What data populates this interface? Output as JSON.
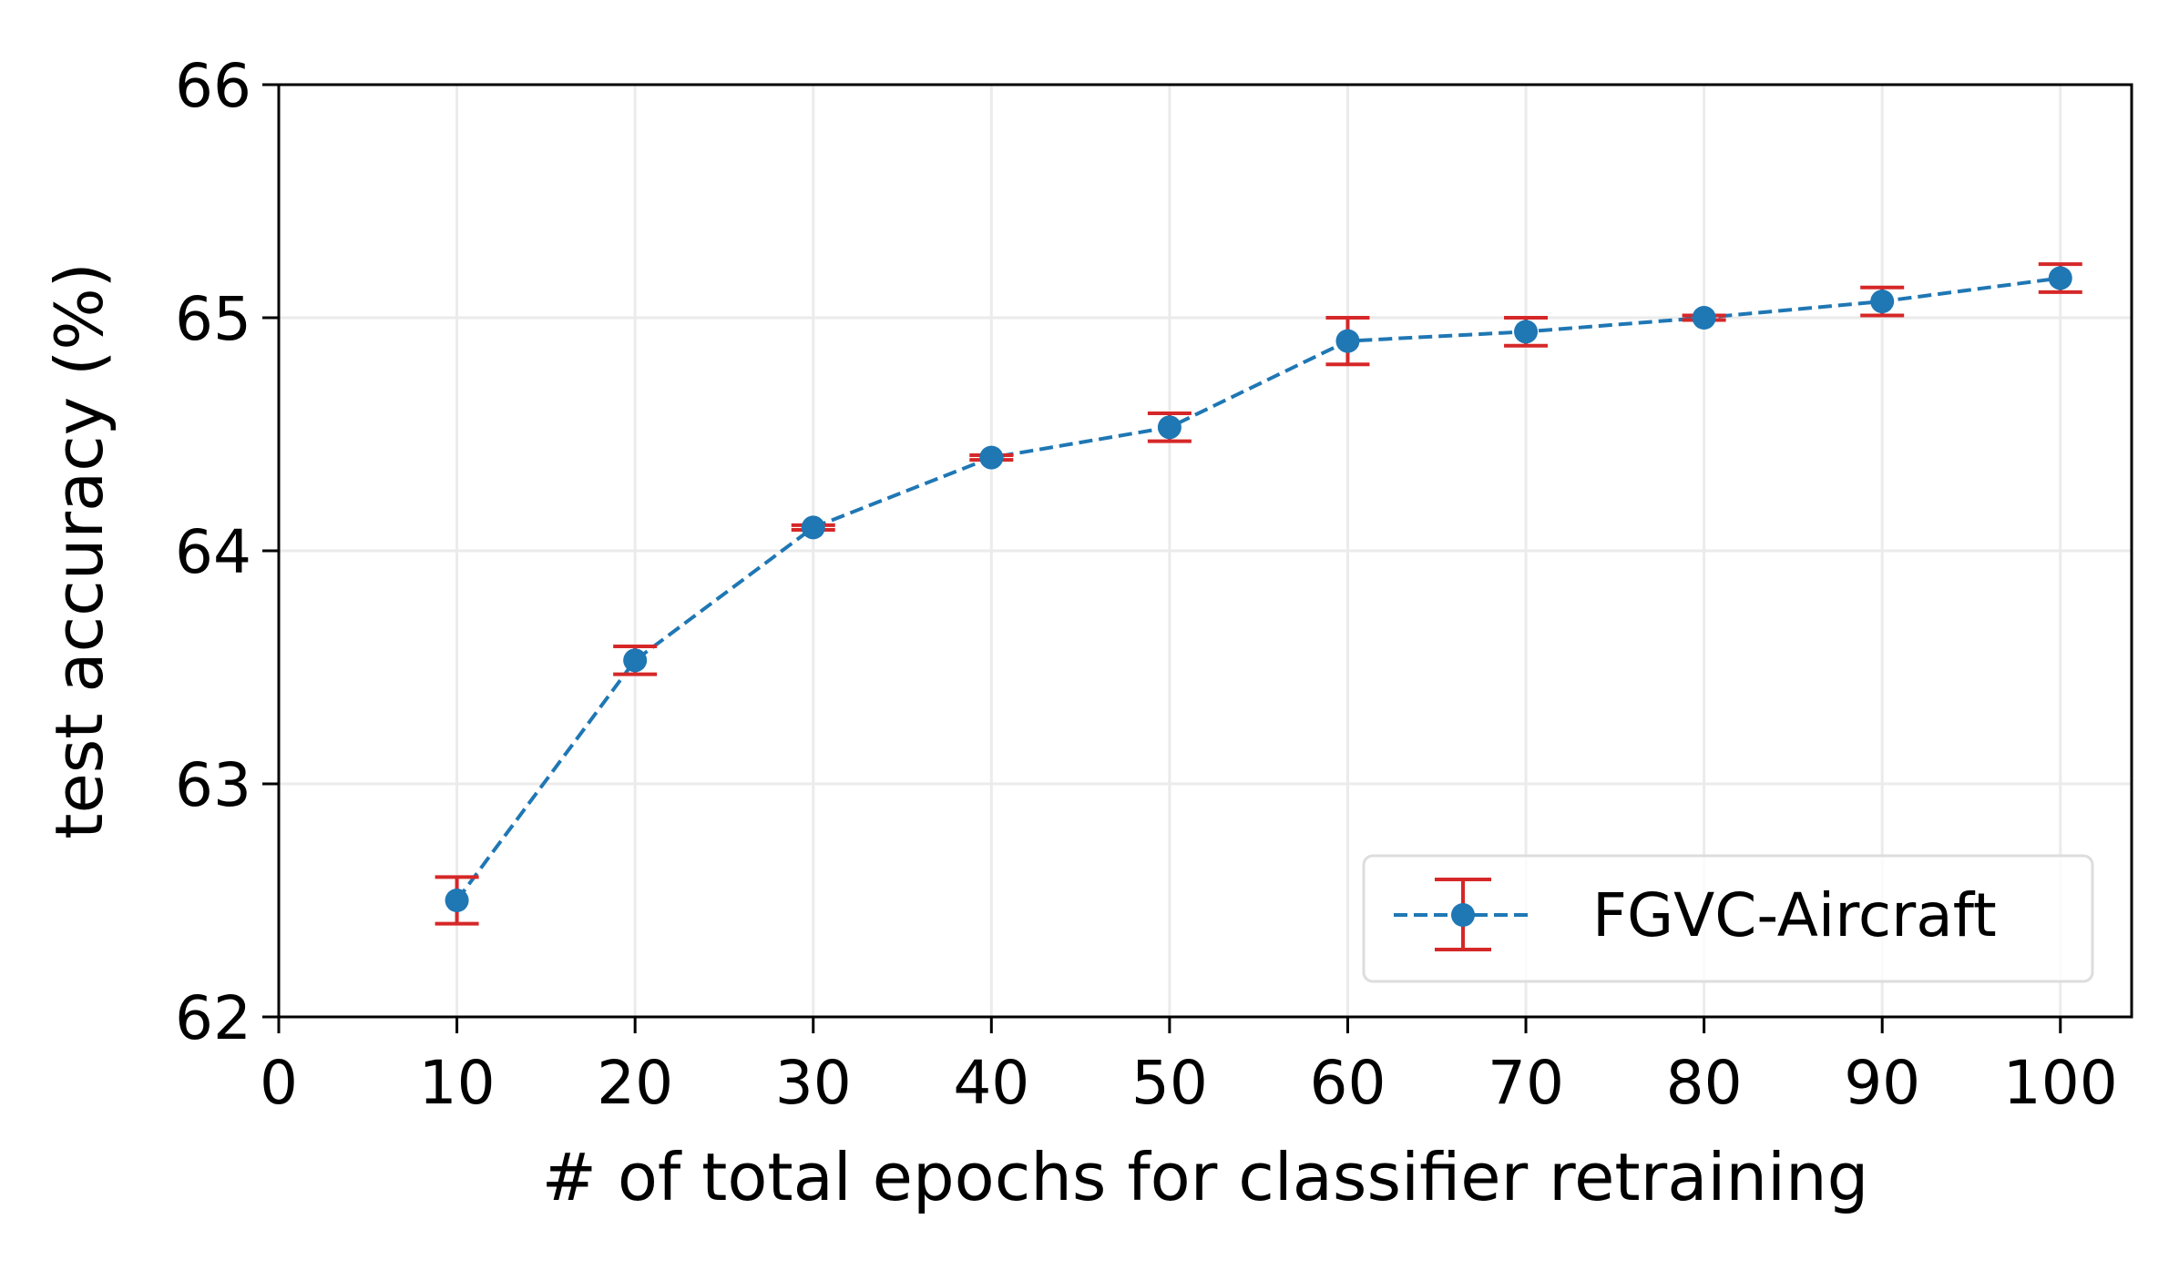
{
  "chart_data": {
    "type": "line",
    "title": "",
    "xlabel": "# of total epochs for classifier retraining",
    "ylabel": "test accuracy (%)",
    "xlim": [
      0,
      104
    ],
    "ylim": [
      62,
      66
    ],
    "xticks": [
      0,
      10,
      20,
      30,
      40,
      50,
      60,
      70,
      80,
      90,
      100
    ],
    "yticks": [
      62,
      63,
      64,
      65,
      66
    ],
    "grid": true,
    "legend_position": "lower-right",
    "series": [
      {
        "name": "FGVC-Aircraft",
        "color": "#1f77b4",
        "error_color": "#d62728",
        "linestyle": "dashed",
        "marker": "circle",
        "x": [
          10,
          20,
          30,
          40,
          50,
          60,
          70,
          80,
          90,
          100
        ],
        "y": [
          62.5,
          63.53,
          64.1,
          64.4,
          64.53,
          64.9,
          64.94,
          65.0,
          65.07,
          65.17
        ],
        "yerr": [
          0.1,
          0.06,
          0.01,
          0.01,
          0.06,
          0.1,
          0.06,
          0.01,
          0.06,
          0.06
        ]
      }
    ]
  }
}
